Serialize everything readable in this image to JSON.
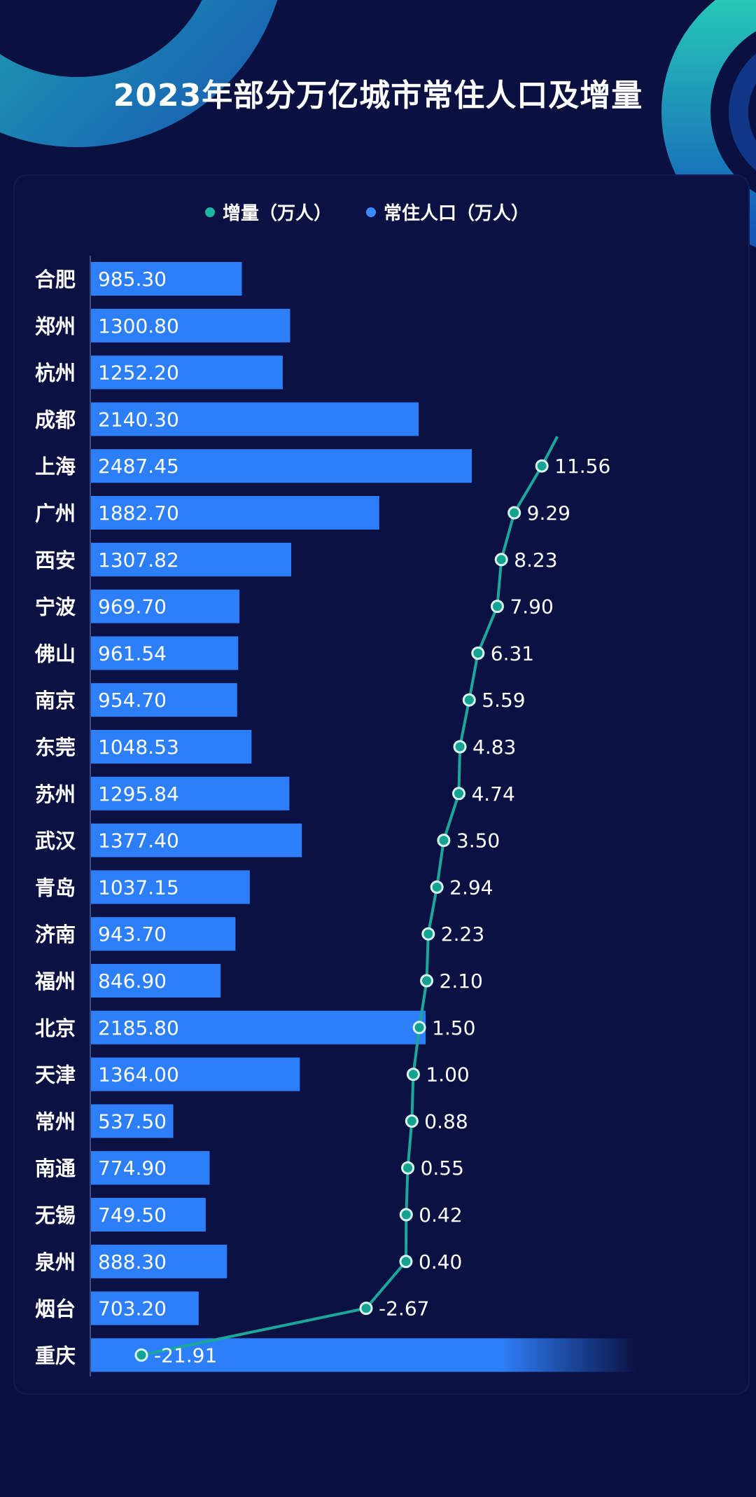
{
  "chart_data": {
    "type": "bar",
    "title": "2023年部分万亿城市常住人口及增量",
    "categories": [
      "合肥",
      "郑州",
      "杭州",
      "成都",
      "上海",
      "广州",
      "西安",
      "宁波",
      "佛山",
      "南京",
      "东莞",
      "苏州",
      "武汉",
      "青岛",
      "济南",
      "福州",
      "北京",
      "天津",
      "常州",
      "南通",
      "无锡",
      "泉州",
      "烟台",
      "重庆"
    ],
    "series": [
      {
        "name": "常住人口（万人）",
        "type": "bar",
        "values": [
          985.3,
          1300.8,
          1252.2,
          2140.3,
          2487.45,
          1882.7,
          1307.82,
          969.7,
          961.54,
          954.7,
          1048.53,
          1295.84,
          1377.4,
          1037.15,
          943.7,
          846.9,
          2185.8,
          1364.0,
          537.5,
          774.9,
          749.5,
          888.3,
          703.2,
          null
        ],
        "labels": [
          "985.30",
          "1300.80",
          "1252.20",
          "2140.30",
          "2487.45",
          "1882.70",
          "1307.82",
          "969.70",
          "961.54",
          "954.70",
          "1048.53",
          "1295.84",
          "1377.40",
          "1037.15",
          "943.70",
          "846.90",
          "2185.80",
          "1364.00",
          "537.50",
          "774.90",
          "749.50",
          "888.30",
          "703.20",
          ""
        ]
      },
      {
        "name": "增量（万人）",
        "type": "line",
        "values": [
          null,
          null,
          null,
          null,
          11.56,
          9.29,
          8.23,
          7.9,
          6.31,
          5.59,
          4.83,
          4.74,
          3.5,
          2.94,
          2.23,
          2.1,
          1.5,
          1.0,
          0.88,
          0.55,
          0.42,
          0.4,
          -2.67,
          -21.91
        ],
        "labels": [
          "",
          "",
          "",
          "",
          "11.56",
          "9.29",
          "8.23",
          "7.90",
          "6.31",
          "5.59",
          "4.83",
          "4.74",
          "3.50",
          "2.94",
          "2.23",
          "2.10",
          "1.50",
          "1.00",
          "0.88",
          "0.55",
          "0.42",
          "0.40",
          "-2.67",
          "-21.91"
        ]
      }
    ],
    "orientation": "horizontal",
    "legend_position": "top",
    "grid": false
  },
  "colors": {
    "background": "#0a1040",
    "panel": "#0b1142",
    "bar": "#2d7ff9",
    "line": "#1aa89a",
    "marker_fill": "#14a292",
    "marker_stroke": "#d8f4ef",
    "legend_dot_inc": "#1bb5a3",
    "legend_dot_pop": "#3a8bff",
    "text": "#ffffff",
    "axis": "#3a4c88"
  }
}
